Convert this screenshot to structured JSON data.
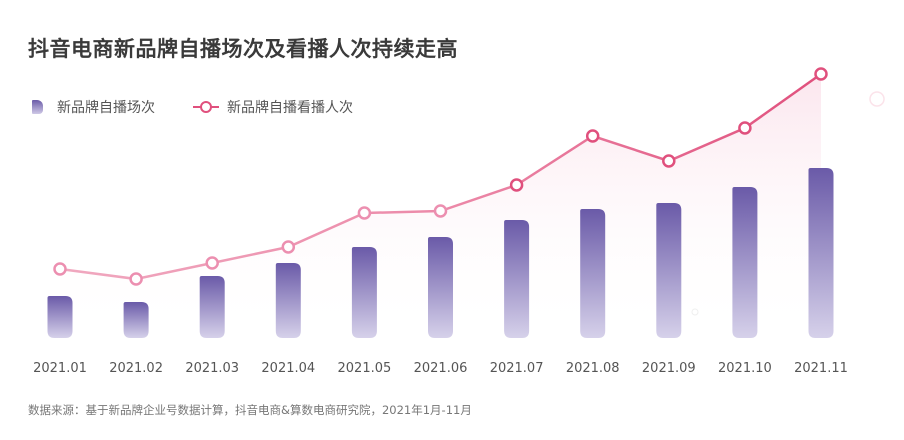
{
  "title": "抖音电商新品牌自播场次及看播人次持续走高",
  "legend": {
    "bar": "新品牌自播场次",
    "line": "新品牌自播看播人次"
  },
  "source": "数据来源：基于新品牌企业号数据计算，抖音电商&算数电商研究院，2021年1月-11月",
  "colors": {
    "bar_top": "#6a5aa8",
    "bar_bottom": "#d6d1ea",
    "line": "#e0507d",
    "line_light": "#f0a8bf"
  },
  "chart_data": {
    "type": "bar+line",
    "title": "抖音电商新品牌自播场次及看播人次持续走高",
    "categories": [
      "2021.01",
      "2021.02",
      "2021.03",
      "2021.04",
      "2021.05",
      "2021.06",
      "2021.07",
      "2021.08",
      "2021.09",
      "2021.10",
      "2021.11"
    ],
    "y_axis": "hidden, relative scale",
    "grid": false,
    "legend_position": "top-left",
    "series": [
      {
        "name": "新品牌自播场次",
        "type": "bar",
        "values": [
          42,
          36,
          62,
          75,
          91,
          101,
          118,
          129,
          135,
          151,
          170
        ]
      },
      {
        "name": "新品牌自播看播人次",
        "type": "line",
        "values": [
          69,
          59,
          75,
          91,
          125,
          127,
          153,
          202,
          177,
          210,
          264
        ]
      }
    ]
  }
}
